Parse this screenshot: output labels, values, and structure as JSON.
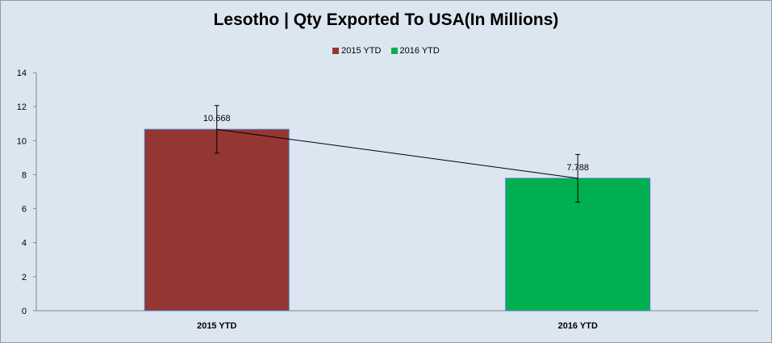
{
  "chart_data": {
    "type": "bar",
    "title": "Lesotho | Qty Exported To USA(In Millions)",
    "categories": [
      "2015 YTD",
      "2016 YTD"
    ],
    "values": [
      10.668,
      7.788
    ],
    "data_labels": [
      "10.668",
      "7.788"
    ],
    "colors": [
      "#943634",
      "#00b050"
    ],
    "legend": [
      {
        "label": "2015 YTD",
        "color": "#943634"
      },
      {
        "label": "2016 YTD",
        "color": "#00b050"
      }
    ],
    "legend_position": "top",
    "error_bars": [
      1.4,
      1.4
    ],
    "trend_line": true,
    "ylim": [
      0,
      14
    ],
    "yticks": [
      0,
      2,
      4,
      6,
      8,
      10,
      12,
      14
    ],
    "ytick_labels": [
      "0",
      "2",
      "4",
      "6",
      "8",
      "10",
      "12",
      "14"
    ],
    "xlabel": "",
    "ylabel": "",
    "grid": false
  }
}
